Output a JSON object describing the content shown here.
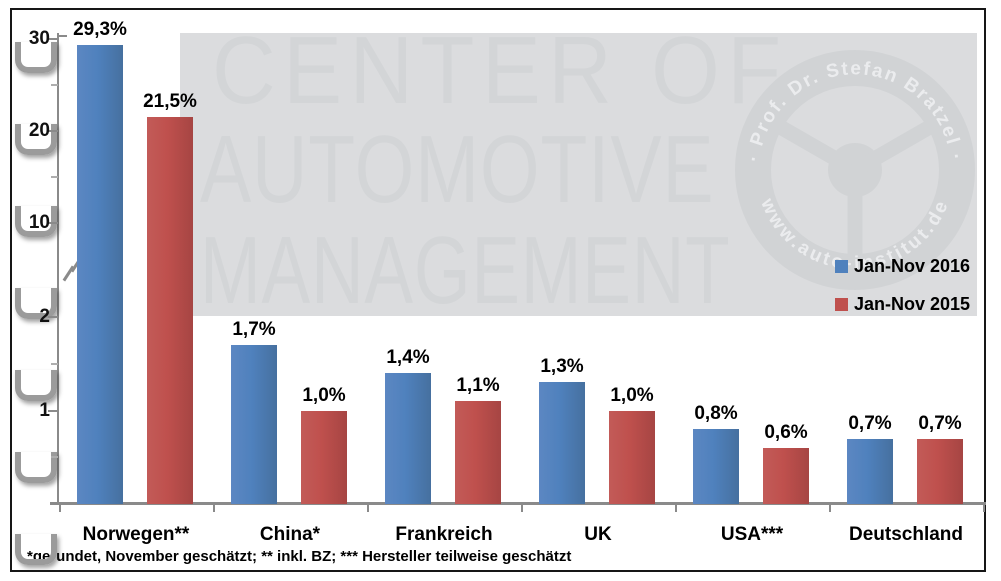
{
  "chart_data": {
    "type": "bar",
    "title": "",
    "categories": [
      "Norwegen**",
      "China*",
      "Frankreich",
      "UK",
      "USA***",
      "Deutschland"
    ],
    "series": [
      {
        "name": "Jan-Nov 2016",
        "color": "#4f81bd",
        "values": [
          29.3,
          1.7,
          1.4,
          1.3,
          0.8,
          0.7
        ],
        "labels": [
          "29,3%",
          "1,7%",
          "1,4%",
          "1,3%",
          "0,8%",
          "0,7%"
        ]
      },
      {
        "name": "Jan-Nov 2015",
        "color": "#bf504d",
        "values": [
          21.5,
          1.0,
          1.1,
          1.0,
          0.6,
          0.7
        ],
        "labels": [
          "21,5%",
          "1,0%",
          "1,1%",
          "1,0%",
          "0,6%",
          "0,7%"
        ]
      }
    ],
    "unit": "%",
    "y_axis": {
      "broken": true,
      "break_between": [
        2,
        10
      ],
      "tick_labels": [
        "30",
        "20",
        "10",
        "2",
        "1"
      ],
      "tick_values": [
        30,
        20,
        10,
        2,
        1
      ]
    },
    "grid": false,
    "legend_position": "middle-right"
  },
  "legend": {
    "items": [
      {
        "label": "Jan-Nov 2016",
        "color": "#4f81bd"
      },
      {
        "label": "Jan-Nov 2015",
        "color": "#bf504d"
      }
    ]
  },
  "watermark": {
    "lines": [
      "CENTER OF",
      "AUTOMOTIVE",
      "MANAGEMENT"
    ],
    "arc_top": "· Prof. Dr. Stefan Bratzel ·",
    "arc_bottom": "www.auto-institut.de"
  },
  "footnote": "*gerundet, November geschätzt; ** inkl. BZ; *** Hersteller teilweise geschätzt",
  "colors": {
    "bar_2016": "#4f81bd",
    "bar_2015": "#bf504d",
    "watermark_box": "#dbdcde",
    "axis": "#8a8a8a"
  }
}
